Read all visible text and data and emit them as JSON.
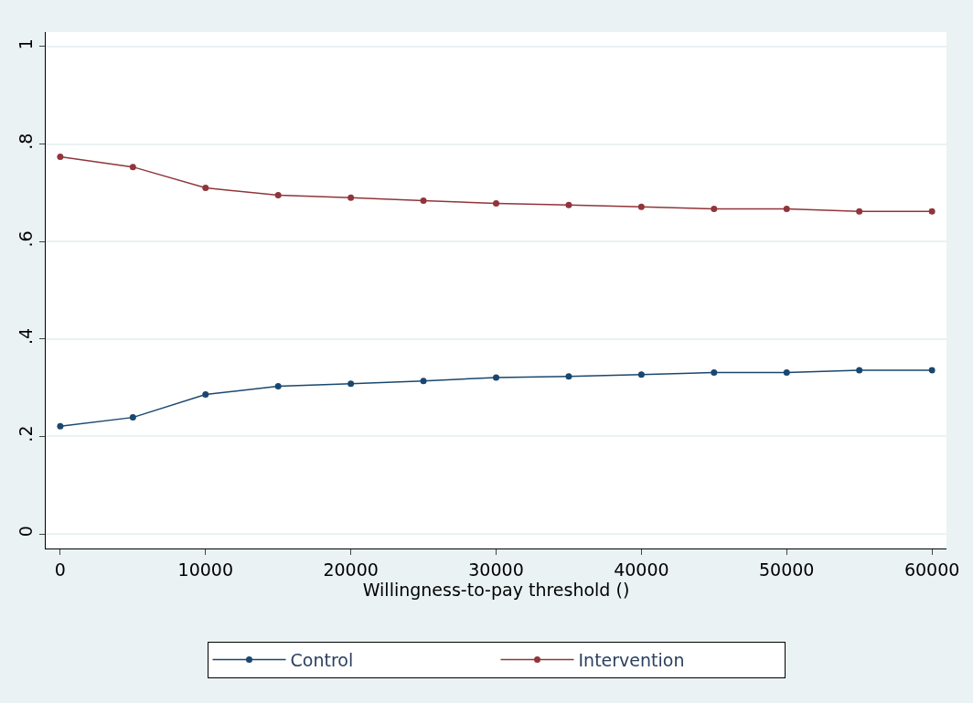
{
  "chart_data": {
    "type": "line",
    "xlabel": "Willingness-to-pay threshold ()",
    "x": [
      0,
      5000,
      10000,
      15000,
      20000,
      25000,
      30000,
      35000,
      40000,
      45000,
      50000,
      55000,
      60000
    ],
    "series": [
      {
        "name": "Control",
        "color": "#1a476f",
        "values": [
          0.221,
          0.239,
          0.286,
          0.303,
          0.308,
          0.314,
          0.321,
          0.323,
          0.327,
          0.331,
          0.331,
          0.336,
          0.336
        ]
      },
      {
        "name": "Intervention",
        "color": "#90353b",
        "values": [
          0.774,
          0.753,
          0.71,
          0.695,
          0.69,
          0.684,
          0.678,
          0.675,
          0.671,
          0.667,
          0.667,
          0.662,
          0.662
        ]
      }
    ],
    "xlim": [
      -1000,
      61000
    ],
    "xticks": [
      0,
      10000,
      20000,
      30000,
      40000,
      50000,
      60000
    ],
    "ylim": [
      -0.03,
      1.03
    ],
    "yticks": [
      {
        "value": 0,
        "label": "0"
      },
      {
        "value": 0.2,
        "label": ".2"
      },
      {
        "value": 0.4,
        "label": ".4"
      },
      {
        "value": 0.6,
        "label": ".6"
      },
      {
        "value": 0.8,
        "label": ".8"
      },
      {
        "value": 1,
        "label": "1"
      }
    ],
    "grid": "y",
    "legend": "bottom",
    "marker": "circle",
    "line_style": "solid"
  }
}
